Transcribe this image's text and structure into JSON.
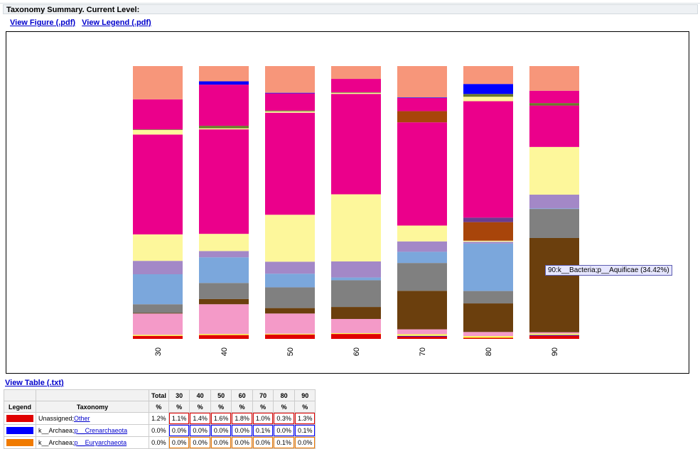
{
  "page": {
    "title": "Taxonomy Summary. Current Level:",
    "links": [
      "View Figure (.pdf)",
      "View Legend (.pdf)"
    ],
    "view_table": "View Table (.txt)",
    "tooltip": "90:k__Bacteria;p__Aquificae (34.42%)"
  },
  "colors": {
    "Unassigned": "#e00000",
    "Crenarchaeota": "#0000ff",
    "Euryarchaeota": "#f07a00",
    "Yellow": "#fcfc54",
    "Pink": "#f49ac8",
    "DarkBrown": "#6b3f0d",
    "Gray": "#808080",
    "SkyBlue": "#7ba7dc",
    "Lavender": "#a388c7",
    "LightYellow": "#fdf79b",
    "RustBrown": "#a8450a",
    "Magenta": "#eb008b",
    "Salmon": "#f7967a",
    "Olive": "#6b7a2a",
    "Purple": "#6a3b8f"
  },
  "chart_data": {
    "type": "bar",
    "stacked": true,
    "normalized_to_percent": true,
    "categories": [
      "30",
      "40",
      "50",
      "60",
      "70",
      "80",
      "90"
    ],
    "series": [
      {
        "name": "Unassigned;Other",
        "color": "Unassigned",
        "values": [
          1.1,
          1.4,
          1.6,
          1.8,
          1.0,
          0.3,
          1.3
        ]
      },
      {
        "name": "k__Archaea;p__Crenarchaeota",
        "color": "Crenarchaeota",
        "values": [
          0.0,
          0.0,
          0.0,
          0.0,
          0.1,
          0.0,
          0.1
        ]
      },
      {
        "name": "k__Archaea;p__Euryarchaeota",
        "color": "Euryarchaeota",
        "values": [
          0.0,
          0.0,
          0.0,
          0.0,
          0.0,
          0.1,
          0.0
        ]
      },
      {
        "color": "Yellow",
        "values": [
          0.4,
          0.4,
          0.3,
          0.3,
          0.6,
          0.4,
          0.5
        ]
      },
      {
        "color": "Pink",
        "values": [
          7.8,
          10.9,
          7.4,
          5.2,
          1.8,
          1.2,
          0.5
        ]
      },
      {
        "color": "DarkBrown",
        "values": [
          0.2,
          1.9,
          2.0,
          4.4,
          14.1,
          8.3,
          34.4
        ]
      },
      {
        "color": "Gray",
        "values": [
          3.2,
          5.9,
          7.6,
          9.8,
          10.2,
          3.6,
          10.6
        ]
      },
      {
        "color": "SkyBlue",
        "values": [
          11.0,
          9.4,
          5.0,
          1.0,
          4.1,
          13.8,
          0.2
        ]
      },
      {
        "color": "Lavender",
        "values": [
          4.9,
          2.3,
          4.4,
          5.9,
          3.8,
          0.5,
          5.0
        ]
      },
      {
        "color": "LightYellow",
        "values": [
          9.7,
          6.3,
          17.2,
          24.6,
          5.8,
          0.3,
          17.4
        ]
      },
      {
        "color": "RustBrown",
        "values": [
          0.0,
          0.0,
          0.0,
          0.0,
          0.0,
          5.4,
          0.0
        ]
      },
      {
        "color": "Purple",
        "values": [
          0.0,
          0.0,
          0.0,
          0.0,
          0.0,
          1.3,
          0.0
        ]
      },
      {
        "color": "Magenta",
        "values": [
          36.6,
          38.3,
          37.4,
          36.8,
          37.8,
          33.8,
          15.1
        ]
      },
      {
        "color": "LightYellow",
        "values": [
          1.7,
          0.4,
          0.5,
          0.4,
          0.0,
          1.3,
          0.0
        ]
      },
      {
        "color": "Olive",
        "values": [
          0.2,
          0.9,
          0.3,
          0.2,
          0.0,
          0.8,
          0.9
        ]
      },
      {
        "color": "RustBrown",
        "values": [
          0.0,
          0.0,
          0.0,
          0.0,
          4.1,
          0.0,
          0.0
        ]
      },
      {
        "color": "Magenta",
        "values": [
          11.0,
          15.1,
          6.3,
          4.9,
          4.9,
          0.0,
          4.5
        ]
      },
      {
        "color": "Crenarchaeota",
        "values": [
          0.0,
          1.2,
          0.2,
          0.0,
          0.1,
          2.9,
          0.0
        ]
      },
      {
        "color": "Salmon",
        "values": [
          12.2,
          5.6,
          9.8,
          4.7,
          11.5,
          5.2,
          9.0
        ]
      }
    ]
  },
  "table": {
    "header_row1": [
      "",
      "",
      "Total",
      "30",
      "40",
      "50",
      "60",
      "70",
      "80",
      "90"
    ],
    "header_row2": [
      "Legend",
      "Taxonomy",
      "%",
      "%",
      "%",
      "%",
      "%",
      "%",
      "%",
      "%"
    ],
    "rows": [
      {
        "color": "Unassigned",
        "prefix": "Unassigned;",
        "link": "Other",
        "values": [
          "1.2%",
          "1.1%",
          "1.4%",
          "1.6%",
          "1.8%",
          "1.0%",
          "0.3%",
          "1.3%"
        ],
        "cell_border": "#e00000"
      },
      {
        "color": "Crenarchaeota",
        "prefix": "k__Archaea;",
        "link": "p__Crenarchaeota",
        "values": [
          "0.0%",
          "0.0%",
          "0.0%",
          "0.0%",
          "0.0%",
          "0.1%",
          "0.0%",
          "0.1%"
        ],
        "cell_border": "#0000ff"
      },
      {
        "color": "Euryarchaeota",
        "prefix": "k__Archaea;",
        "link": "p__Euryarchaeota",
        "values": [
          "0.0%",
          "0.0%",
          "0.0%",
          "0.0%",
          "0.0%",
          "0.0%",
          "0.1%",
          "0.0%"
        ],
        "cell_border": "#f07a00"
      }
    ]
  }
}
